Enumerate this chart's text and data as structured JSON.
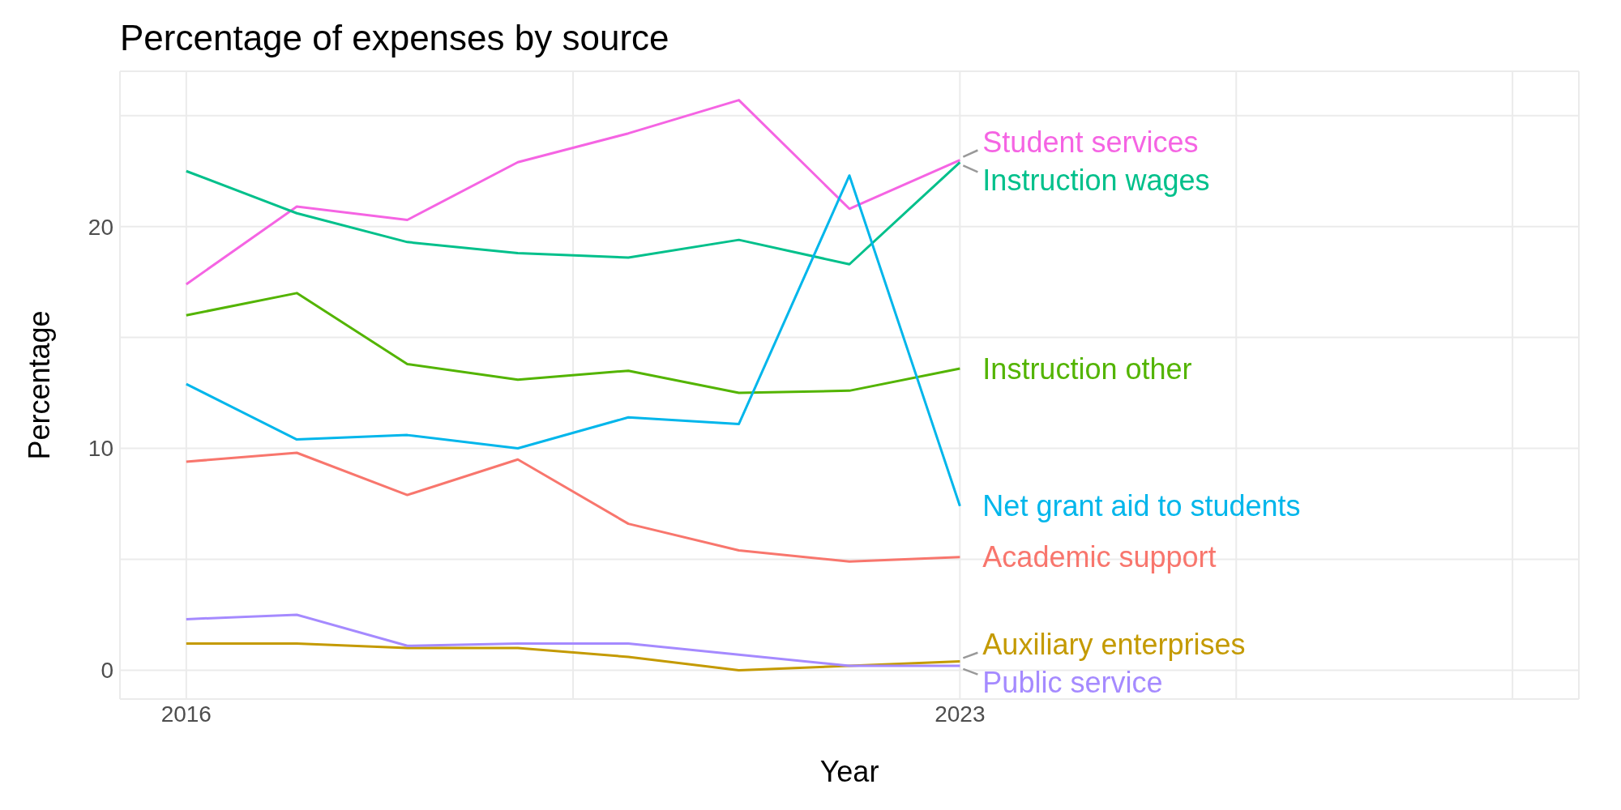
{
  "chart_data": {
    "type": "line",
    "title": "Percentage of expenses by source",
    "xlabel": "Year",
    "ylabel": "Percentage",
    "x": [
      2016,
      2017,
      2018,
      2019,
      2020,
      2021,
      2022,
      2023
    ],
    "xlim": [
      2015.4,
      2028.6
    ],
    "xticks": [
      2016,
      {
        "value": 2019.5,
        "label": null
      },
      2023,
      {
        "value": 2025.5,
        "label": null
      },
      {
        "value": 2028,
        "label": null
      }
    ],
    "ylim": [
      -1.3,
      27
    ],
    "yticks": [
      0,
      {
        "value": 5,
        "label": null
      },
      10,
      {
        "value": 15,
        "label": null
      },
      20,
      {
        "value": 25,
        "label": null
      }
    ],
    "grid": true,
    "legend": false,
    "marker": "none",
    "line_style": "solid",
    "series": [
      {
        "name": "Student services",
        "color": "#f564e3",
        "values": [
          17.4,
          20.9,
          20.3,
          22.9,
          24.2,
          25.7,
          20.8,
          23.0
        ]
      },
      {
        "name": "Instruction wages",
        "color": "#00c08b",
        "values": [
          22.5,
          20.6,
          19.3,
          18.8,
          18.6,
          19.4,
          18.3,
          22.9
        ]
      },
      {
        "name": "Instruction other",
        "color": "#53b400",
        "values": [
          16.0,
          17.0,
          13.8,
          13.1,
          13.5,
          12.5,
          12.6,
          13.6
        ]
      },
      {
        "name": "Net grant aid to students",
        "color": "#00b6eb",
        "values": [
          12.9,
          10.4,
          10.6,
          10.0,
          11.4,
          11.1,
          22.3,
          7.4
        ]
      },
      {
        "name": "Academic support",
        "color": "#f8766d",
        "values": [
          9.4,
          9.8,
          7.9,
          9.5,
          6.6,
          5.4,
          4.9,
          5.1
        ]
      },
      {
        "name": "Auxiliary enterprises",
        "color": "#c49a00",
        "values": [
          1.2,
          1.2,
          1.0,
          1.0,
          0.6,
          0.0,
          0.2,
          0.4
        ]
      },
      {
        "name": "Public service",
        "color": "#a58aff",
        "values": [
          2.3,
          2.5,
          1.1,
          1.2,
          1.2,
          0.7,
          0.2,
          0.2
        ]
      }
    ]
  }
}
